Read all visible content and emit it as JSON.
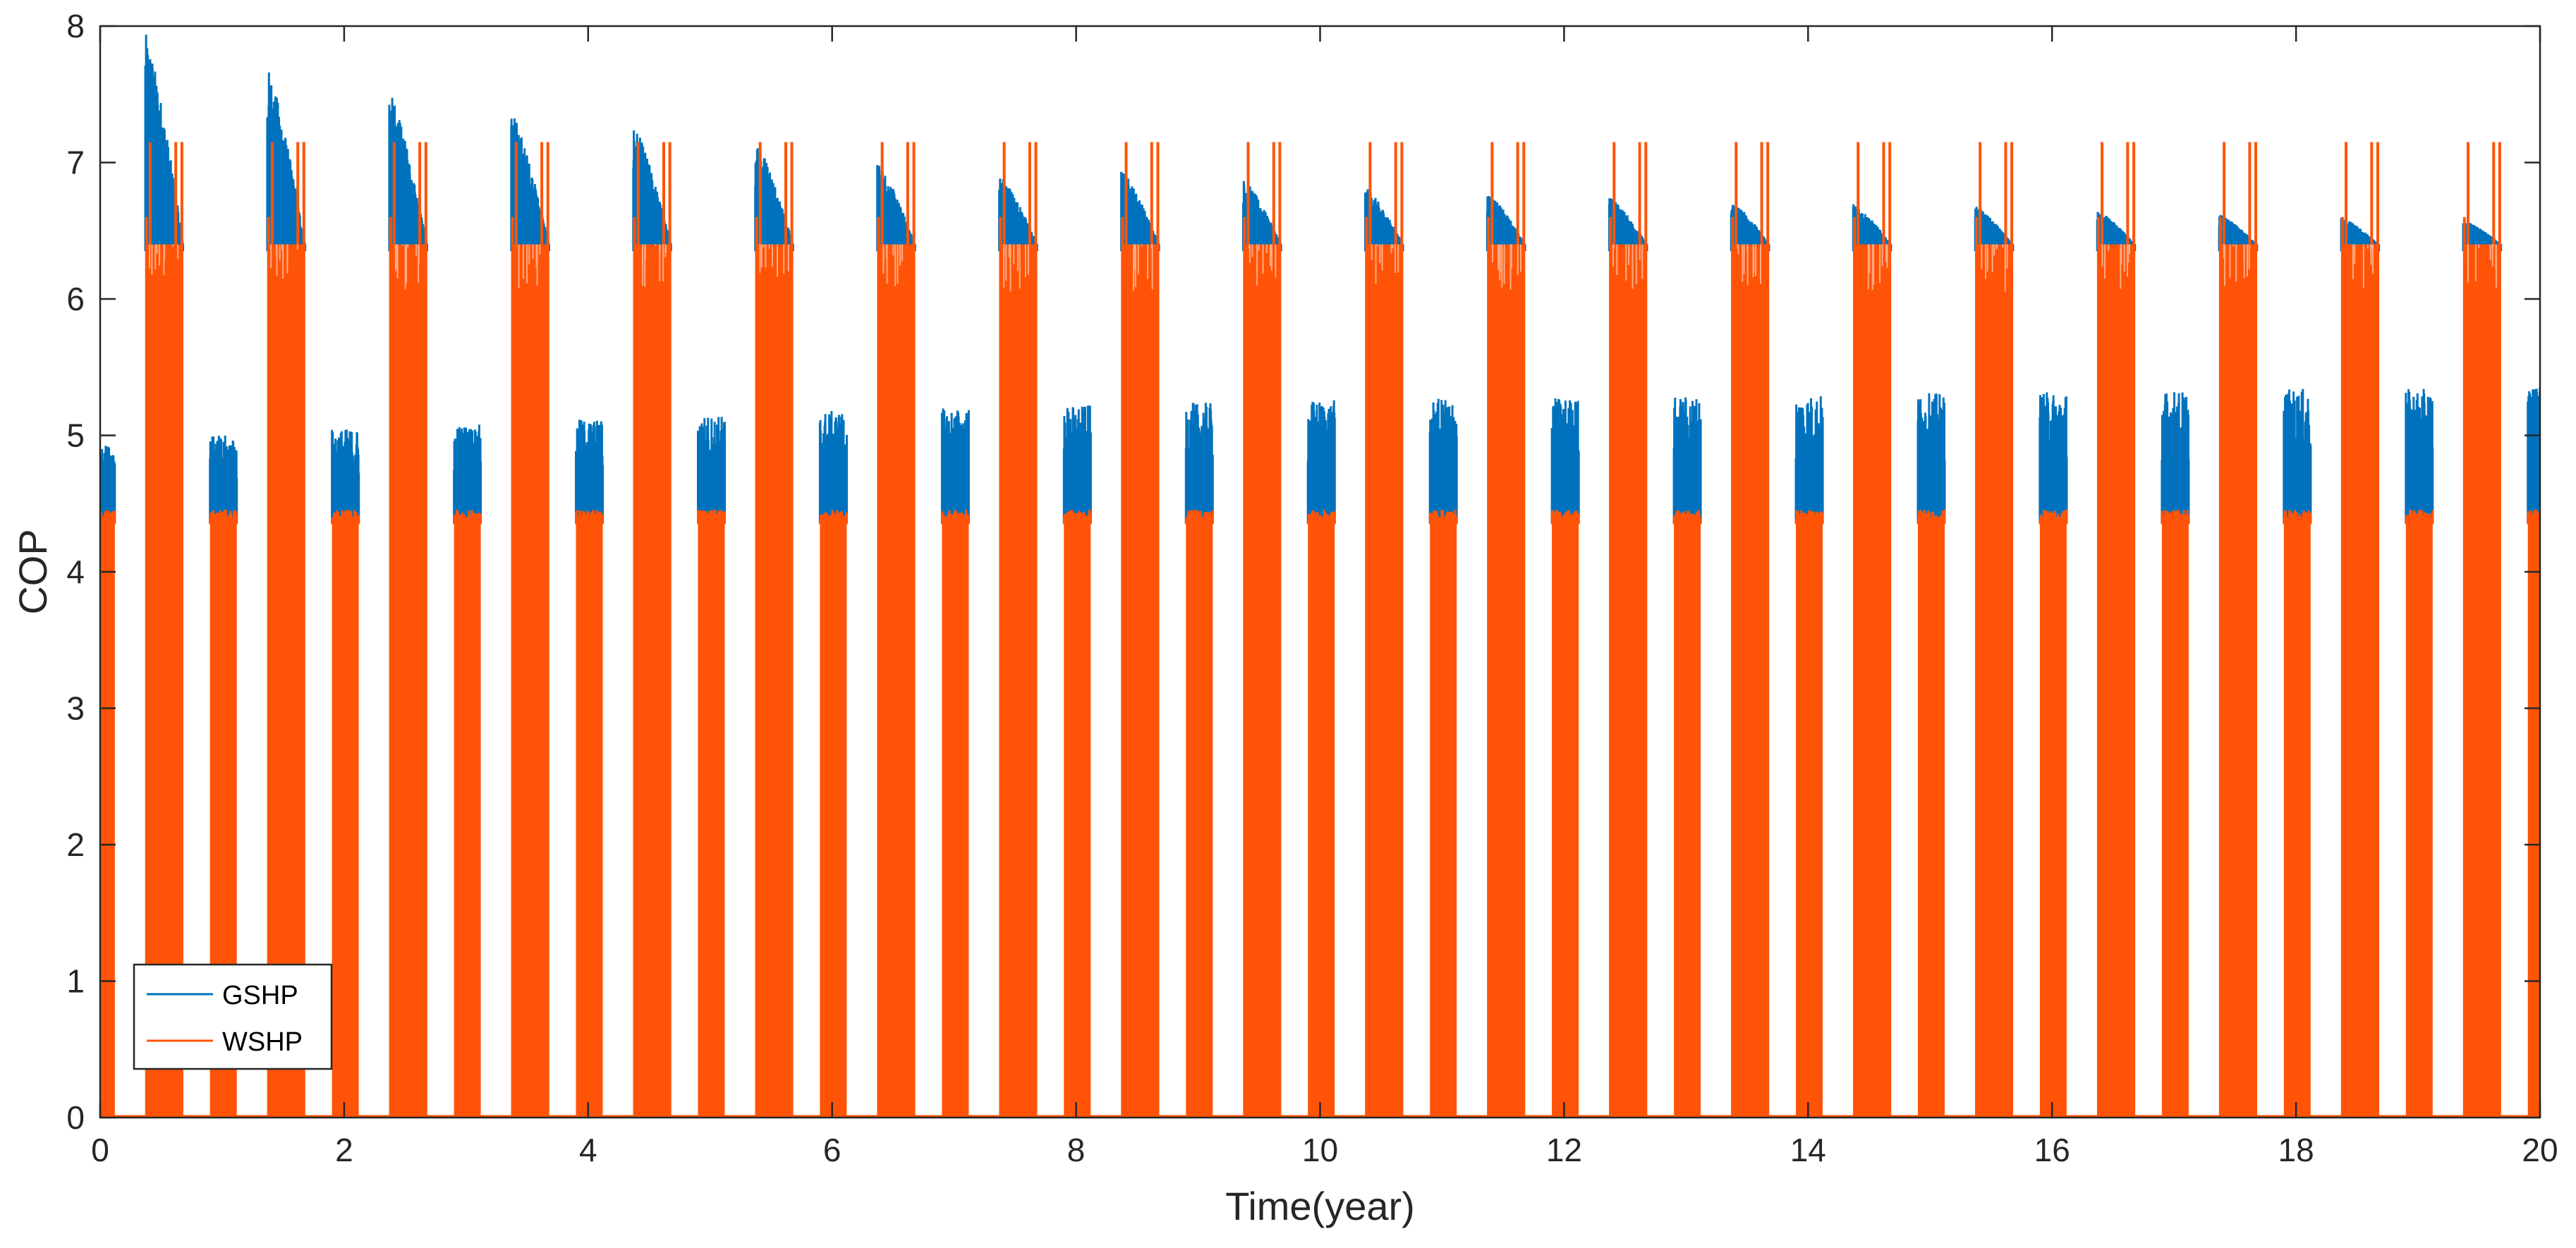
{
  "chart_data": {
    "type": "line",
    "title": "",
    "xlabel": "Time(year)",
    "ylabel": "COP",
    "xlim": [
      0,
      20
    ],
    "ylim": [
      0,
      8
    ],
    "x_ticks": [
      "0",
      "2",
      "4",
      "6",
      "8",
      "10",
      "12",
      "14",
      "16",
      "18",
      "20"
    ],
    "y_ticks": [
      "0",
      "1",
      "2",
      "3",
      "4",
      "5",
      "6",
      "7",
      "8"
    ],
    "grid": false,
    "legend_position": "bottom-left",
    "colors": {
      "GSHP": "#0072BD",
      "WSHP": "#FF5408",
      "axis": "#262626"
    },
    "series": [
      {
        "name": "GSHP",
        "cooling_seasons": [
          {
            "start": 0.37,
            "end": 0.68,
            "peak": 7.95,
            "flat": 6.4
          },
          {
            "start": 1.37,
            "end": 1.68,
            "peak": 7.7,
            "flat": 6.4
          },
          {
            "start": 2.37,
            "end": 2.68,
            "peak": 7.52,
            "flat": 6.4
          },
          {
            "start": 3.37,
            "end": 3.68,
            "peak": 7.38,
            "flat": 6.4
          },
          {
            "start": 4.37,
            "end": 4.68,
            "peak": 7.28,
            "flat": 6.4
          },
          {
            "start": 5.37,
            "end": 5.68,
            "peak": 7.18,
            "flat": 6.4
          },
          {
            "start": 6.37,
            "end": 6.68,
            "peak": 7.0,
            "flat": 6.4
          },
          {
            "start": 7.37,
            "end": 7.68,
            "peak": 6.92,
            "flat": 6.4
          },
          {
            "start": 8.37,
            "end": 8.68,
            "peak": 6.95,
            "flat": 6.4
          },
          {
            "start": 9.37,
            "end": 9.68,
            "peak": 6.88,
            "flat": 6.4
          },
          {
            "start": 10.37,
            "end": 10.68,
            "peak": 6.82,
            "flat": 6.4
          },
          {
            "start": 11.37,
            "end": 11.68,
            "peak": 6.78,
            "flat": 6.4
          },
          {
            "start": 12.37,
            "end": 12.68,
            "peak": 6.75,
            "flat": 6.4
          },
          {
            "start": 13.37,
            "end": 13.68,
            "peak": 6.72,
            "flat": 6.4
          },
          {
            "start": 14.37,
            "end": 14.68,
            "peak": 6.7,
            "flat": 6.4
          },
          {
            "start": 15.37,
            "end": 15.68,
            "peak": 6.68,
            "flat": 6.4
          },
          {
            "start": 16.37,
            "end": 16.68,
            "peak": 6.65,
            "flat": 6.4
          },
          {
            "start": 17.37,
            "end": 17.68,
            "peak": 6.62,
            "flat": 6.4
          },
          {
            "start": 18.37,
            "end": 18.68,
            "peak": 6.6,
            "flat": 6.4
          },
          {
            "start": 19.37,
            "end": 19.68,
            "peak": 6.58,
            "flat": 6.4
          }
        ],
        "heating_seasons": [
          {
            "start": 0.0,
            "end": 0.12,
            "peak": 4.93,
            "base": 4.4
          },
          {
            "start": 0.9,
            "end": 1.12,
            "peak": 5.0,
            "base": 4.4
          },
          {
            "start": 1.9,
            "end": 2.12,
            "peak": 5.05,
            "base": 4.4
          },
          {
            "start": 2.9,
            "end": 3.12,
            "peak": 5.08,
            "base": 4.4
          },
          {
            "start": 3.9,
            "end": 4.12,
            "peak": 5.12,
            "base": 4.4
          },
          {
            "start": 4.9,
            "end": 5.12,
            "peak": 5.15,
            "base": 4.4
          },
          {
            "start": 5.9,
            "end": 6.12,
            "peak": 5.18,
            "base": 4.4
          },
          {
            "start": 6.9,
            "end": 7.12,
            "peak": 5.2,
            "base": 4.4
          },
          {
            "start": 7.9,
            "end": 8.12,
            "peak": 5.22,
            "base": 4.4
          },
          {
            "start": 8.9,
            "end": 9.12,
            "peak": 5.24,
            "base": 4.4
          },
          {
            "start": 9.9,
            "end": 10.12,
            "peak": 5.26,
            "base": 4.4
          },
          {
            "start": 10.9,
            "end": 11.12,
            "peak": 5.27,
            "base": 4.4
          },
          {
            "start": 11.9,
            "end": 12.12,
            "peak": 5.28,
            "base": 4.4
          },
          {
            "start": 12.9,
            "end": 13.12,
            "peak": 5.29,
            "base": 4.4
          },
          {
            "start": 13.9,
            "end": 14.12,
            "peak": 5.3,
            "base": 4.4
          },
          {
            "start": 14.9,
            "end": 15.12,
            "peak": 5.31,
            "base": 4.4
          },
          {
            "start": 15.9,
            "end": 16.12,
            "peak": 5.32,
            "base": 4.4
          },
          {
            "start": 16.9,
            "end": 17.12,
            "peak": 5.33,
            "base": 4.4
          },
          {
            "start": 17.9,
            "end": 18.12,
            "peak": 5.34,
            "base": 4.4
          },
          {
            "start": 18.9,
            "end": 19.12,
            "peak": 5.34,
            "base": 4.4
          },
          {
            "start": 19.9,
            "end": 20.0,
            "peak": 5.35,
            "base": 4.4
          }
        ]
      },
      {
        "name": "WSHP",
        "cooling_seasons": [
          {
            "start": 0.37,
            "end": 0.68,
            "peak": 7.15,
            "flat": 6.4
          },
          {
            "start": 1.37,
            "end": 1.68,
            "peak": 7.15,
            "flat": 6.4
          },
          {
            "start": 2.37,
            "end": 2.68,
            "peak": 7.15,
            "flat": 6.4
          },
          {
            "start": 3.37,
            "end": 3.68,
            "peak": 7.15,
            "flat": 6.4
          },
          {
            "start": 4.37,
            "end": 4.68,
            "peak": 7.15,
            "flat": 6.4
          },
          {
            "start": 5.37,
            "end": 5.68,
            "peak": 7.15,
            "flat": 6.4
          },
          {
            "start": 6.37,
            "end": 6.68,
            "peak": 7.15,
            "flat": 6.4
          },
          {
            "start": 7.37,
            "end": 7.68,
            "peak": 7.15,
            "flat": 6.4
          },
          {
            "start": 8.37,
            "end": 8.68,
            "peak": 7.15,
            "flat": 6.4
          },
          {
            "start": 9.37,
            "end": 9.68,
            "peak": 7.15,
            "flat": 6.4
          },
          {
            "start": 10.37,
            "end": 10.68,
            "peak": 7.15,
            "flat": 6.4
          },
          {
            "start": 11.37,
            "end": 11.68,
            "peak": 7.15,
            "flat": 6.4
          },
          {
            "start": 12.37,
            "end": 12.68,
            "peak": 7.15,
            "flat": 6.4
          },
          {
            "start": 13.37,
            "end": 13.68,
            "peak": 7.15,
            "flat": 6.4
          },
          {
            "start": 14.37,
            "end": 14.68,
            "peak": 7.15,
            "flat": 6.4
          },
          {
            "start": 15.37,
            "end": 15.68,
            "peak": 7.15,
            "flat": 6.4
          },
          {
            "start": 16.37,
            "end": 16.68,
            "peak": 7.15,
            "flat": 6.4
          },
          {
            "start": 17.37,
            "end": 17.68,
            "peak": 7.15,
            "flat": 6.4
          },
          {
            "start": 18.37,
            "end": 18.68,
            "peak": 7.15,
            "flat": 6.4
          },
          {
            "start": 19.37,
            "end": 19.68,
            "peak": 7.15,
            "flat": 6.4
          }
        ],
        "heating_seasons": [
          {
            "start": 0.0,
            "end": 0.12,
            "level": 4.4
          },
          {
            "start": 0.9,
            "end": 1.12,
            "level": 4.4
          },
          {
            "start": 1.9,
            "end": 2.12,
            "level": 4.4
          },
          {
            "start": 2.9,
            "end": 3.12,
            "level": 4.4
          },
          {
            "start": 3.9,
            "end": 4.12,
            "level": 4.4
          },
          {
            "start": 4.9,
            "end": 5.12,
            "level": 4.4
          },
          {
            "start": 5.9,
            "end": 6.12,
            "level": 4.4
          },
          {
            "start": 6.9,
            "end": 7.12,
            "level": 4.4
          },
          {
            "start": 7.9,
            "end": 8.12,
            "level": 4.4
          },
          {
            "start": 8.9,
            "end": 9.12,
            "level": 4.4
          },
          {
            "start": 9.9,
            "end": 10.12,
            "level": 4.4
          },
          {
            "start": 10.9,
            "end": 11.12,
            "level": 4.4
          },
          {
            "start": 11.9,
            "end": 12.12,
            "level": 4.4
          },
          {
            "start": 12.9,
            "end": 13.12,
            "level": 4.4
          },
          {
            "start": 13.9,
            "end": 14.12,
            "level": 4.4
          },
          {
            "start": 14.9,
            "end": 15.12,
            "level": 4.4
          },
          {
            "start": 15.9,
            "end": 16.12,
            "level": 4.4
          },
          {
            "start": 16.9,
            "end": 17.12,
            "level": 4.4
          },
          {
            "start": 17.9,
            "end": 18.12,
            "level": 4.4
          },
          {
            "start": 18.9,
            "end": 19.12,
            "level": 4.4
          },
          {
            "start": 19.9,
            "end": 20.0,
            "level": 4.4
          }
        ]
      }
    ]
  }
}
